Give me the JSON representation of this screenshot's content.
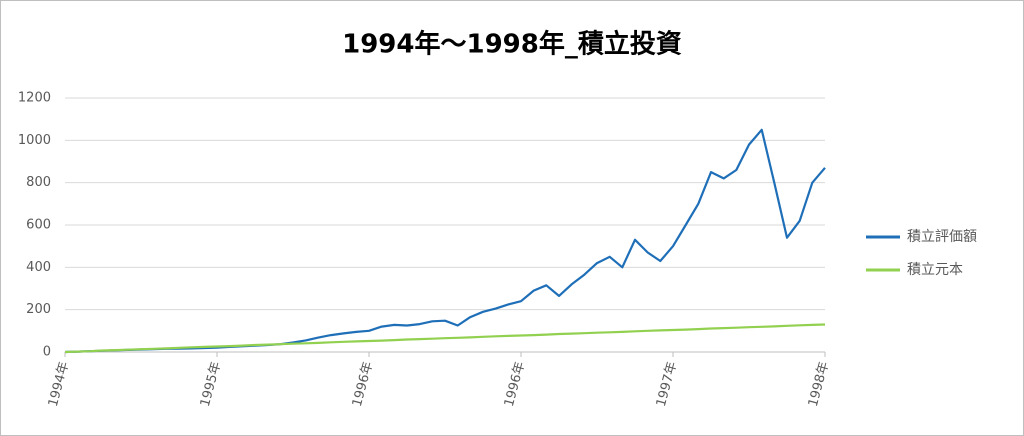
{
  "chart_data": {
    "type": "line",
    "title": "1994年～1998年_積立投資",
    "categories": [
      "1994年",
      null,
      null,
      null,
      null,
      null,
      null,
      null,
      null,
      null,
      null,
      null,
      "1995年",
      null,
      null,
      null,
      null,
      null,
      null,
      null,
      null,
      null,
      null,
      null,
      "1996年",
      null,
      null,
      null,
      null,
      null,
      null,
      null,
      null,
      null,
      null,
      null,
      "1996年",
      null,
      null,
      null,
      null,
      null,
      null,
      null,
      null,
      null,
      null,
      null,
      "1997年",
      null,
      null,
      null,
      null,
      null,
      null,
      null,
      null,
      null,
      null,
      null,
      "1998年"
    ],
    "series": [
      {
        "name": "積立評価額",
        "color": "#1f6fb8",
        "values": [
          0,
          2,
          4,
          6,
          8,
          10,
          12,
          13,
          15,
          16,
          17,
          19,
          21,
          24,
          27,
          30,
          33,
          37,
          45,
          55,
          68,
          80,
          88,
          95,
          100,
          120,
          128,
          125,
          132,
          145,
          148,
          125,
          165,
          190,
          205,
          225,
          240,
          290,
          315,
          265,
          320,
          365,
          420,
          450,
          400,
          530,
          470,
          430,
          500,
          600,
          700,
          850,
          820,
          860,
          980,
          1050,
          800,
          540,
          620,
          800,
          870
        ]
      },
      {
        "name": "積立元本",
        "color": "#92d050",
        "values": [
          0,
          2,
          4,
          7,
          9,
          11,
          13,
          15,
          17,
          20,
          22,
          24,
          26,
          28,
          30,
          33,
          35,
          37,
          39,
          41,
          43,
          46,
          48,
          50,
          52,
          54,
          56,
          59,
          61,
          63,
          65,
          67,
          69,
          72,
          74,
          76,
          78,
          80,
          82,
          85,
          87,
          89,
          91,
          93,
          95,
          98,
          100,
          102,
          104,
          106,
          108,
          111,
          113,
          115,
          117,
          119,
          121,
          124,
          126,
          128,
          130
        ]
      }
    ],
    "ylim": [
      0,
      1200
    ],
    "yticks": [
      0,
      200,
      400,
      600,
      800,
      1000,
      1200
    ],
    "grid": true
  }
}
